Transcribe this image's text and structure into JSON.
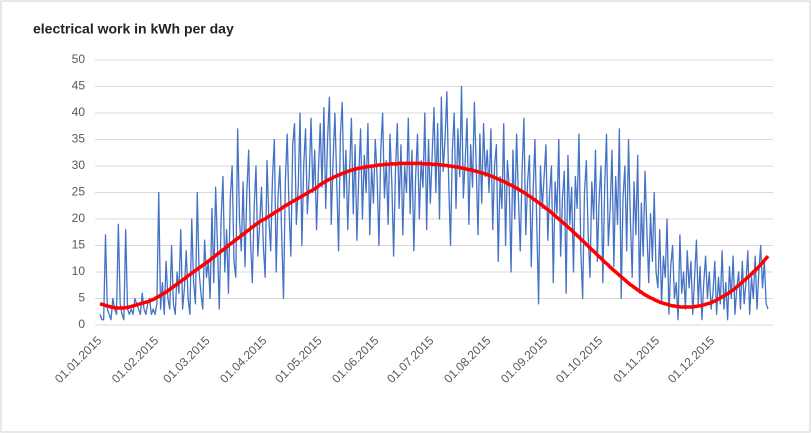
{
  "chart_data": {
    "type": "line",
    "title": "electrical work in kWh per day",
    "categories": [
      "01.01.2015",
      null,
      null,
      null,
      null,
      null,
      null,
      null,
      null,
      null,
      null,
      null,
      null,
      null,
      null,
      null,
      null,
      null,
      null,
      null,
      null,
      null,
      null,
      null,
      null,
      null,
      null,
      null,
      null,
      null,
      null,
      "01.02.2015",
      null,
      null,
      null,
      null,
      null,
      null,
      null,
      null,
      null,
      null,
      null,
      null,
      null,
      null,
      null,
      null,
      null,
      null,
      null,
      null,
      null,
      null,
      null,
      null,
      null,
      null,
      null,
      "01.03.2015",
      null,
      null,
      null,
      null,
      null,
      null,
      null,
      null,
      null,
      null,
      null,
      null,
      null,
      null,
      null,
      null,
      null,
      null,
      null,
      null,
      null,
      null,
      null,
      null,
      null,
      null,
      null,
      null,
      null,
      null,
      "01.04.2015",
      null,
      null,
      null,
      null,
      null,
      null,
      null,
      null,
      null,
      null,
      null,
      null,
      null,
      null,
      null,
      null,
      null,
      null,
      null,
      null,
      null,
      null,
      null,
      null,
      null,
      null,
      null,
      null,
      null,
      "01.05.2015",
      null,
      null,
      null,
      null,
      null,
      null,
      null,
      null,
      null,
      null,
      null,
      null,
      null,
      null,
      null,
      null,
      null,
      null,
      null,
      null,
      null,
      null,
      null,
      null,
      null,
      null,
      null,
      null,
      null,
      null,
      "01.06.2015",
      null,
      null,
      null,
      null,
      null,
      null,
      null,
      null,
      null,
      null,
      null,
      null,
      null,
      null,
      null,
      null,
      null,
      null,
      null,
      null,
      null,
      null,
      null,
      null,
      null,
      null,
      null,
      null,
      null,
      "01.07.2015",
      null,
      null,
      null,
      null,
      null,
      null,
      null,
      null,
      null,
      null,
      null,
      null,
      null,
      null,
      null,
      null,
      null,
      null,
      null,
      null,
      null,
      null,
      null,
      null,
      null,
      null,
      null,
      null,
      null,
      null,
      "01.08.2015",
      null,
      null,
      null,
      null,
      null,
      null,
      null,
      null,
      null,
      null,
      null,
      null,
      null,
      null,
      null,
      null,
      null,
      null,
      null,
      null,
      null,
      null,
      null,
      null,
      null,
      null,
      null,
      null,
      null,
      null,
      "01.09.2015",
      null,
      null,
      null,
      null,
      null,
      null,
      null,
      null,
      null,
      null,
      null,
      null,
      null,
      null,
      null,
      null,
      null,
      null,
      null,
      null,
      null,
      null,
      null,
      null,
      null,
      null,
      null,
      null,
      null,
      "01.10.2015",
      null,
      null,
      null,
      null,
      null,
      null,
      null,
      null,
      null,
      null,
      null,
      null,
      null,
      null,
      null,
      null,
      null,
      null,
      null,
      null,
      null,
      null,
      null,
      null,
      null,
      null,
      null,
      null,
      null,
      null,
      "01.11.2015",
      null,
      null,
      null,
      null,
      null,
      null,
      null,
      null,
      null,
      null,
      null,
      null,
      null,
      null,
      null,
      null,
      null,
      null,
      null,
      null,
      null,
      null,
      null,
      null,
      null,
      null,
      null,
      null,
      null,
      "01.12.2015",
      null,
      null,
      null,
      null,
      null,
      null,
      null,
      null,
      null,
      null,
      null,
      null,
      null,
      null,
      null,
      null,
      null,
      null,
      null,
      null,
      null,
      null,
      null,
      null,
      null,
      null,
      null,
      null,
      null,
      null
    ],
    "series": [
      {
        "color": "#4472c4",
        "values": [
          2,
          1,
          1,
          17,
          3,
          2,
          1,
          5,
          3,
          2,
          19,
          4,
          2,
          1,
          18,
          3,
          2,
          3,
          2,
          5,
          4,
          3,
          2,
          6,
          3,
          2,
          4,
          5,
          2,
          3,
          2,
          4,
          25,
          3,
          8,
          2,
          12,
          5,
          3,
          15,
          4,
          2,
          10,
          6,
          18,
          3,
          7,
          14,
          5,
          2,
          20,
          8,
          4,
          25,
          10,
          6,
          3,
          16,
          9,
          12,
          5,
          22,
          8,
          26,
          15,
          3,
          20,
          28,
          10,
          18,
          6,
          24,
          30,
          12,
          9,
          37,
          20,
          14,
          27,
          11,
          25,
          33,
          16,
          8,
          22,
          30,
          13,
          19,
          26,
          15,
          9,
          31,
          20,
          14,
          28,
          35,
          10,
          24,
          30,
          17,
          5,
          27,
          36,
          22,
          13,
          34,
          38,
          19,
          26,
          40,
          15,
          30,
          37,
          21,
          28,
          39,
          25,
          33,
          18,
          29,
          38,
          26,
          41,
          22,
          35,
          43,
          19,
          31,
          40,
          27,
          14,
          36,
          42,
          24,
          33,
          18,
          29,
          39,
          21,
          34,
          16,
          28,
          37,
          20,
          32,
          25,
          38,
          17,
          30,
          23,
          35,
          28,
          15,
          33,
          40,
          24,
          31,
          19,
          36,
          27,
          13,
          29,
          38,
          22,
          34,
          17,
          30,
          25,
          39,
          21,
          33,
          14,
          28,
          36,
          20,
          31,
          26,
          40,
          18,
          35,
          23,
          32,
          41,
          25,
          38,
          20,
          43,
          29,
          35,
          44,
          27,
          15,
          33,
          40,
          22,
          37,
          28,
          45,
          24,
          31,
          39,
          19,
          34,
          26,
          42,
          30,
          17,
          36,
          23,
          38,
          28,
          33,
          25,
          37,
          18,
          30,
          34,
          12,
          28,
          22,
          38,
          15,
          31,
          26,
          10,
          33,
          20,
          36,
          24,
          14,
          29,
          39,
          17,
          27,
          32,
          11,
          25,
          35,
          19,
          4,
          30,
          22,
          28,
          34,
          16,
          25,
          30,
          8,
          27,
          21,
          35,
          13,
          24,
          29,
          6,
          32,
          19,
          26,
          10,
          28,
          22,
          36,
          14,
          5,
          25,
          31,
          17,
          9,
          27,
          20,
          33,
          12,
          24,
          30,
          8,
          26,
          36,
          15,
          22,
          33,
          11,
          28,
          19,
          37,
          5,
          24,
          30,
          14,
          35,
          20,
          9,
          27,
          17,
          32,
          6,
          23,
          13,
          29,
          18,
          8,
          21,
          12,
          25,
          10,
          7,
          18,
          4,
          13,
          9,
          20,
          2,
          11,
          15,
          5,
          8,
          1,
          17,
          6,
          10,
          3,
          14,
          7,
          12,
          2,
          9,
          16,
          4,
          11,
          1,
          8,
          13,
          5,
          10,
          3,
          6,
          12,
          2,
          9,
          4,
          14,
          3,
          8,
          1,
          11,
          5,
          13,
          2,
          7,
          10,
          3,
          12,
          4,
          8,
          14,
          2,
          9,
          5,
          13,
          3,
          10,
          15,
          7,
          12,
          4,
          3
        ]
      },
      {
        "color": "#ff0000",
        "values": [
          4.0,
          3.9,
          3.8,
          3.7,
          3.6,
          3.5,
          3.4,
          3.3,
          3.3,
          3.2,
          3.2,
          3.2,
          3.2,
          3.2,
          3.3,
          3.3,
          3.4,
          3.5,
          3.6,
          3.7,
          3.8,
          3.9,
          4.0,
          4.1,
          4.2,
          4.3,
          4.4,
          4.5,
          4.7,
          4.8,
          5.0,
          5.2,
          5.4,
          5.6,
          5.8,
          6.0,
          6.2,
          6.5,
          6.7,
          7.0,
          7.2,
          7.5,
          7.7,
          8.0,
          8.2,
          8.5,
          8.7,
          9.0,
          9.3,
          9.5,
          9.8,
          10.0,
          10.3,
          10.5,
          10.8,
          11.0,
          11.3,
          11.5,
          11.8,
          12.0,
          12.3,
          12.6,
          12.8,
          13.1,
          13.4,
          13.6,
          13.9,
          14.2,
          14.4,
          14.7,
          15.0,
          15.3,
          15.5,
          15.8,
          16.1,
          16.3,
          16.6,
          16.9,
          17.1,
          17.4,
          17.7,
          17.9,
          18.2,
          18.5,
          18.7,
          19.0,
          19.2,
          19.5,
          19.7,
          19.9,
          20.0,
          20.3,
          20.5,
          20.7,
          20.9,
          21.2,
          21.4,
          21.6,
          21.8,
          22.0,
          22.3,
          22.5,
          22.7,
          22.9,
          23.1,
          23.3,
          23.5,
          23.7,
          23.9,
          24.1,
          24.3,
          24.5,
          24.7,
          24.9,
          25.1,
          25.3,
          25.5,
          25.7,
          25.9,
          26.2,
          26.5,
          26.7,
          26.9,
          27.1,
          27.3,
          27.5,
          27.6,
          27.8,
          28.0,
          28.1,
          28.3,
          28.4,
          28.6,
          28.7,
          28.8,
          29.0,
          29.1,
          29.2,
          29.3,
          29.4,
          29.5,
          29.6,
          29.6,
          29.7,
          29.8,
          29.8,
          29.9,
          29.9,
          30.0,
          30.0,
          30.1,
          30.1,
          30.2,
          30.2,
          30.2,
          30.3,
          30.3,
          30.3,
          30.4,
          30.4,
          30.4,
          30.4,
          30.4,
          30.5,
          30.5,
          30.5,
          30.5,
          30.5,
          30.5,
          30.5,
          30.5,
          30.5,
          30.5,
          30.5,
          30.5,
          30.5,
          30.4,
          30.4,
          30.4,
          30.4,
          30.4,
          30.3,
          30.3,
          30.3,
          30.3,
          30.2,
          30.2,
          30.2,
          30.1,
          30.1,
          30.0,
          30.0,
          29.9,
          29.9,
          29.8,
          29.8,
          29.7,
          29.6,
          29.6,
          29.5,
          29.4,
          29.3,
          29.3,
          29.2,
          29.1,
          29.0,
          28.9,
          28.8,
          28.7,
          28.6,
          28.5,
          28.4,
          28.2,
          28.1,
          28.0,
          27.8,
          27.7,
          27.5,
          27.4,
          27.2,
          27.1,
          26.9,
          26.7,
          26.5,
          26.4,
          26.2,
          26.0,
          25.8,
          25.6,
          25.4,
          25.2,
          25.0,
          24.8,
          24.5,
          24.3,
          24.1,
          23.8,
          23.6,
          23.3,
          23.1,
          22.8,
          22.6,
          22.3,
          22.0,
          21.8,
          21.5,
          21.2,
          20.9,
          20.6,
          20.3,
          20.0,
          19.7,
          19.4,
          19.1,
          18.8,
          18.5,
          18.2,
          17.9,
          17.5,
          17.2,
          16.9,
          16.6,
          16.2,
          15.9,
          15.6,
          15.2,
          14.9,
          14.6,
          14.2,
          13.9,
          13.6,
          13.2,
          12.9,
          12.6,
          12.2,
          11.9,
          11.6,
          11.3,
          10.9,
          10.6,
          10.3,
          10.0,
          9.7,
          9.4,
          9.1,
          8.8,
          8.5,
          8.2,
          7.9,
          7.6,
          7.4,
          7.1,
          6.9,
          6.6,
          6.4,
          6.2,
          5.9,
          5.7,
          5.5,
          5.3,
          5.1,
          5.0,
          4.8,
          4.6,
          4.5,
          4.3,
          4.2,
          4.1,
          4.0,
          3.9,
          3.8,
          3.7,
          3.6,
          3.6,
          3.5,
          3.5,
          3.4,
          3.4,
          3.4,
          3.4,
          3.4,
          3.4,
          3.4,
          3.4,
          3.5,
          3.5,
          3.6,
          3.6,
          3.7,
          3.8,
          3.9,
          4.0,
          4.1,
          4.2,
          4.4,
          4.5,
          4.7,
          4.9,
          5.1,
          5.3,
          5.5,
          5.7,
          5.9,
          6.1,
          6.4,
          6.6,
          6.9,
          7.2,
          7.5,
          7.8,
          8.1,
          8.4,
          8.7,
          9.0,
          9.3,
          9.6,
          10.0,
          10.3,
          10.6,
          11.0,
          11.4,
          11.8,
          12.2,
          12.6,
          13.0
        ]
      }
    ],
    "ylim": [
      0,
      50
    ],
    "yticks": [
      0,
      5,
      10,
      15,
      20,
      25,
      30,
      35,
      40,
      45,
      50
    ],
    "grid": true
  }
}
